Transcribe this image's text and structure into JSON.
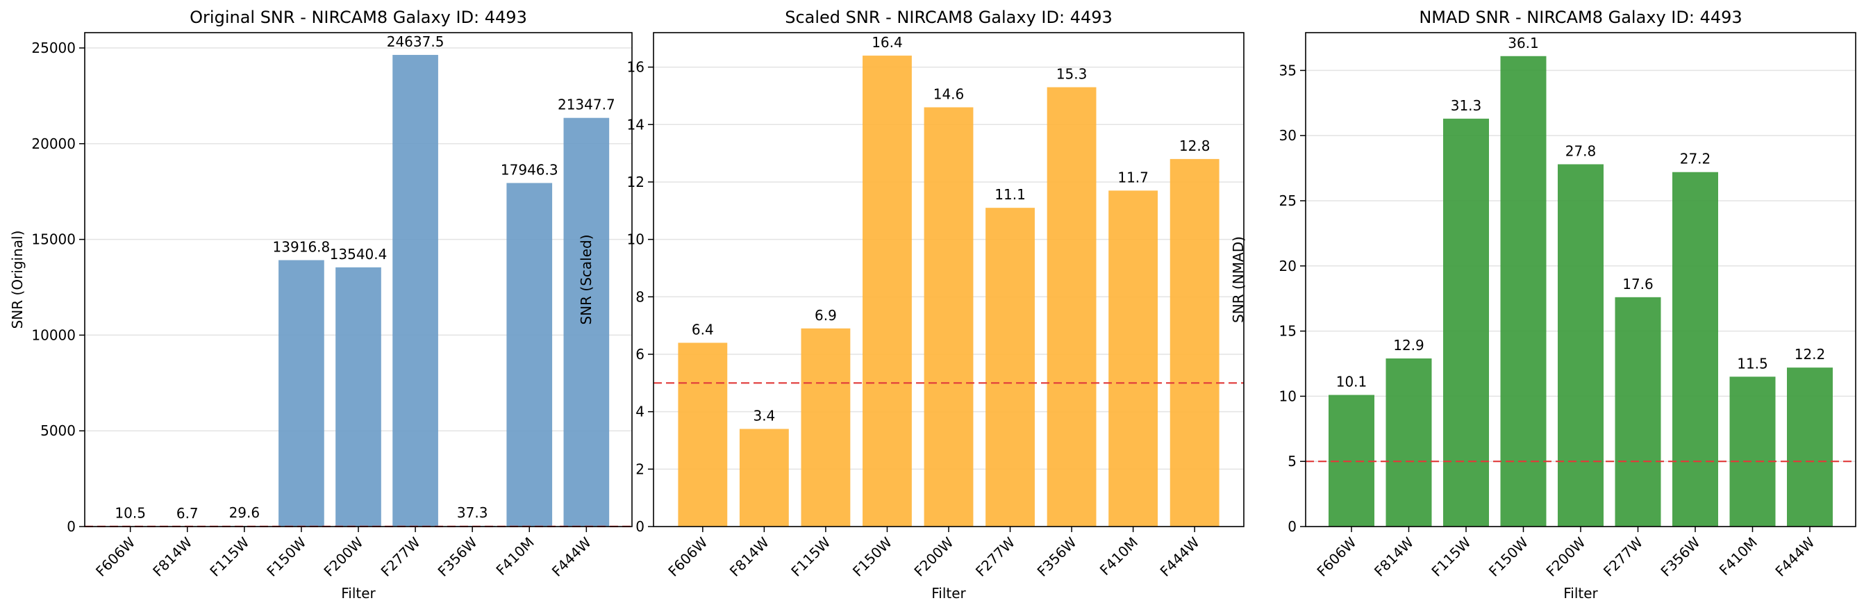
{
  "chart_data": [
    {
      "type": "bar",
      "title": "Original SNR - NIRCAM8 Galaxy ID: 4493",
      "xlabel": "Filter",
      "ylabel": "SNR (Original)",
      "categories": [
        "F606W",
        "F814W",
        "F115W",
        "F150W",
        "F200W",
        "F277W",
        "F356W",
        "F410M",
        "F444W"
      ],
      "values": [
        10.5,
        6.7,
        29.6,
        13916.8,
        13540.4,
        24637.5,
        37.3,
        17946.3,
        21347.7
      ],
      "value_labels": [
        "10.5",
        "6.7",
        "29.6",
        "13916.8",
        "13540.4",
        "24637.5",
        "37.3",
        "17946.3",
        "21347.7"
      ],
      "ylim": [
        0,
        25800
      ],
      "yticks": [
        0,
        5000,
        10000,
        15000,
        20000,
        25000
      ],
      "threshold": 5,
      "color": "#6a9bc6",
      "threshold_color": "#e03a3a",
      "grid": "y"
    },
    {
      "type": "bar",
      "title": "Scaled SNR - NIRCAM8 Galaxy ID: 4493",
      "xlabel": "Filter",
      "ylabel": "SNR (Scaled)",
      "categories": [
        "F606W",
        "F814W",
        "F115W",
        "F150W",
        "F200W",
        "F277W",
        "F356W",
        "F410M",
        "F444W"
      ],
      "values": [
        6.4,
        3.4,
        6.9,
        16.4,
        14.6,
        11.1,
        15.3,
        11.7,
        12.8
      ],
      "value_labels": [
        "6.4",
        "3.4",
        "6.9",
        "16.4",
        "14.6",
        "11.1",
        "15.3",
        "11.7",
        "12.8"
      ],
      "ylim": [
        0,
        17.2
      ],
      "yticks": [
        0,
        2,
        4,
        6,
        8,
        10,
        12,
        14,
        16
      ],
      "threshold": 5,
      "color": "#ffb438",
      "threshold_color": "#e03a3a",
      "grid": "y"
    },
    {
      "type": "bar",
      "title": "NMAD SNR - NIRCAM8 Galaxy ID: 4493",
      "xlabel": "Filter",
      "ylabel": "SNR (NMAD)",
      "categories": [
        "F606W",
        "F814W",
        "F115W",
        "F150W",
        "F200W",
        "F277W",
        "F356W",
        "F410M",
        "F444W"
      ],
      "values": [
        10.1,
        12.9,
        31.3,
        36.1,
        27.8,
        17.6,
        27.2,
        11.5,
        12.2
      ],
      "value_labels": [
        "10.1",
        "12.9",
        "31.3",
        "36.1",
        "27.8",
        "17.6",
        "27.2",
        "11.5",
        "12.2"
      ],
      "ylim": [
        0,
        37.9
      ],
      "yticks": [
        0,
        5,
        10,
        15,
        20,
        25,
        30,
        35
      ],
      "threshold": 5,
      "color": "#3a9a3a",
      "threshold_color": "#e03a3a",
      "grid": "y"
    }
  ]
}
